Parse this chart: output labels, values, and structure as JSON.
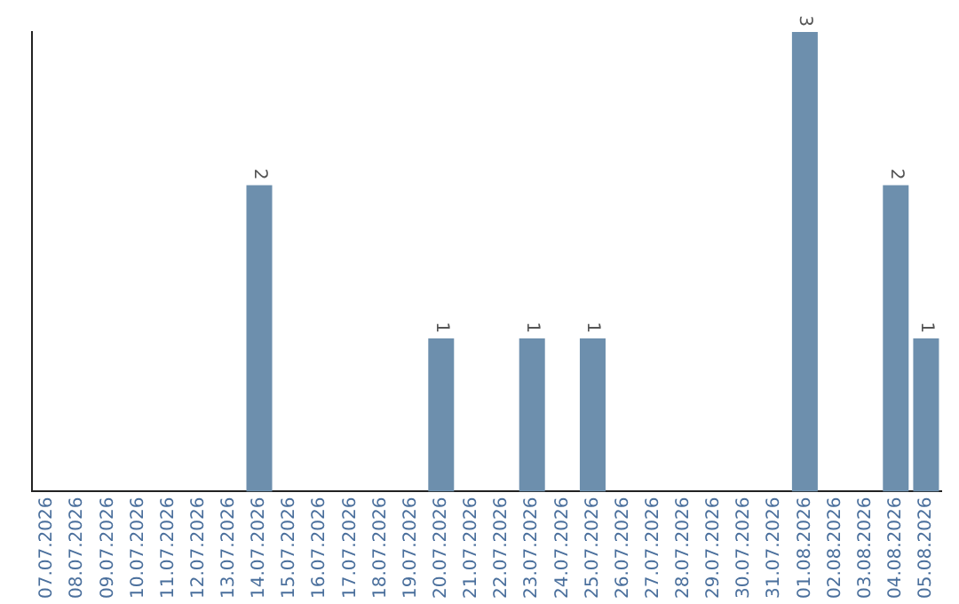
{
  "chart_data": {
    "type": "bar",
    "categories": [
      "07.07.2026",
      "08.07.2026",
      "09.07.2026",
      "10.07.2026",
      "11.07.2026",
      "12.07.2026",
      "13.07.2026",
      "14.07.2026",
      "15.07.2026",
      "16.07.2026",
      "17.07.2026",
      "18.07.2026",
      "19.07.2026",
      "20.07.2026",
      "21.07.2026",
      "22.07.2026",
      "23.07.2026",
      "24.07.2026",
      "25.07.2026",
      "26.07.2026",
      "27.07.2026",
      "28.07.2026",
      "29.07.2026",
      "30.07.2026",
      "31.07.2026",
      "01.08.2026",
      "02.08.2026",
      "03.08.2026",
      "04.08.2026",
      "05.08.2026"
    ],
    "values": [
      0,
      0,
      0,
      0,
      0,
      0,
      0,
      2,
      0,
      0,
      0,
      0,
      0,
      1,
      0,
      0,
      1,
      0,
      1,
      0,
      0,
      0,
      0,
      0,
      0,
      3,
      0,
      0,
      2,
      1
    ],
    "value_labels": [
      null,
      null,
      null,
      null,
      null,
      null,
      null,
      "2",
      null,
      null,
      null,
      null,
      null,
      "1",
      null,
      null,
      "1",
      null,
      "1",
      null,
      null,
      null,
      null,
      null,
      null,
      "3",
      null,
      null,
      "2",
      "1"
    ],
    "color": "#6d8fad",
    "grid": false,
    "legend": false,
    "tick_labels": "x"
  }
}
